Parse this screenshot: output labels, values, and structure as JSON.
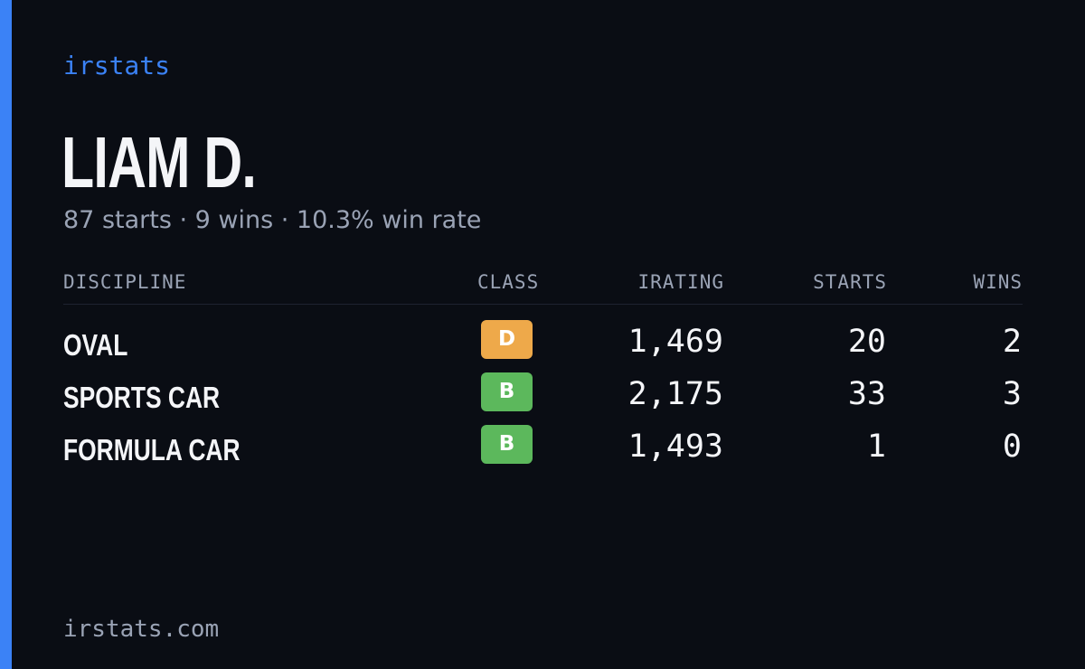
{
  "brand": "irstats",
  "player": {
    "name": "LIAM D.",
    "summary": "87 starts · 9 wins · 10.3% win rate"
  },
  "table": {
    "headers": {
      "discipline": "DISCIPLINE",
      "class": "CLASS",
      "irating": "IRATING",
      "starts": "STARTS",
      "wins": "WINS"
    },
    "rows": [
      {
        "discipline": "OVAL",
        "class": "D",
        "class_color": "#eea94a",
        "irating": "1,469",
        "starts": "20",
        "wins": "2"
      },
      {
        "discipline": "SPORTS CAR",
        "class": "B",
        "class_color": "#5cb85c",
        "irating": "2,175",
        "starts": "33",
        "wins": "3"
      },
      {
        "discipline": "FORMULA CAR",
        "class": "B",
        "class_color": "#5cb85c",
        "irating": "1,493",
        "starts": "1",
        "wins": "0"
      }
    ]
  },
  "footer": {
    "domain": "irstats.com"
  },
  "colors": {
    "accent": "#3b82f6",
    "background": "#0a0d14",
    "text": "#f4f5f8",
    "muted": "#9aa3b5"
  }
}
